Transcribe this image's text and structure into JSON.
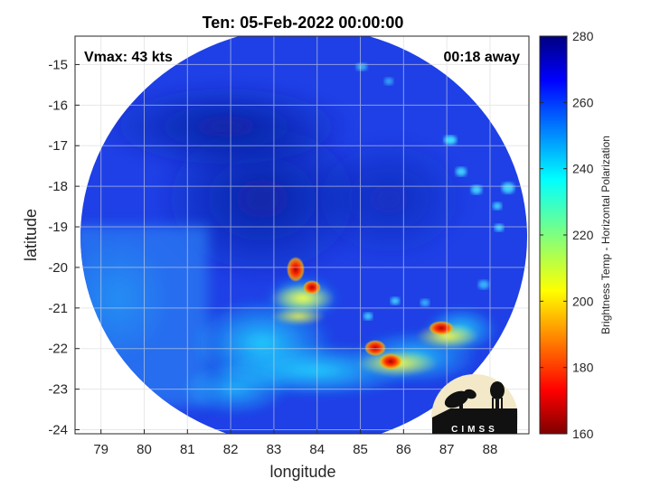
{
  "title": "Ten: 05-Feb-2022 00:00:00",
  "annotations": {
    "vmax": "Vmax: 43 kts",
    "away": "00:18 away"
  },
  "axes": {
    "xlabel": "longitude",
    "ylabel": "latitude",
    "xlim": [
      78.4,
      88.9
    ],
    "ylim": [
      -24.1,
      -14.3
    ],
    "xticks": [
      "79",
      "80",
      "81",
      "82",
      "83",
      "84",
      "85",
      "86",
      "87",
      "88"
    ],
    "yticks": [
      "-15",
      "-16",
      "-17",
      "-18",
      "-19",
      "-20",
      "-21",
      "-22",
      "-23",
      "-24"
    ],
    "grid": true
  },
  "colorbar": {
    "label": "Brightness Temp - Horizontal Polarization",
    "range": [
      160,
      280
    ],
    "ticks": [
      "280",
      "260",
      "240",
      "220",
      "200",
      "180",
      "160"
    ],
    "colormap": "jet"
  },
  "logo": {
    "text": "CIMSS"
  }
}
